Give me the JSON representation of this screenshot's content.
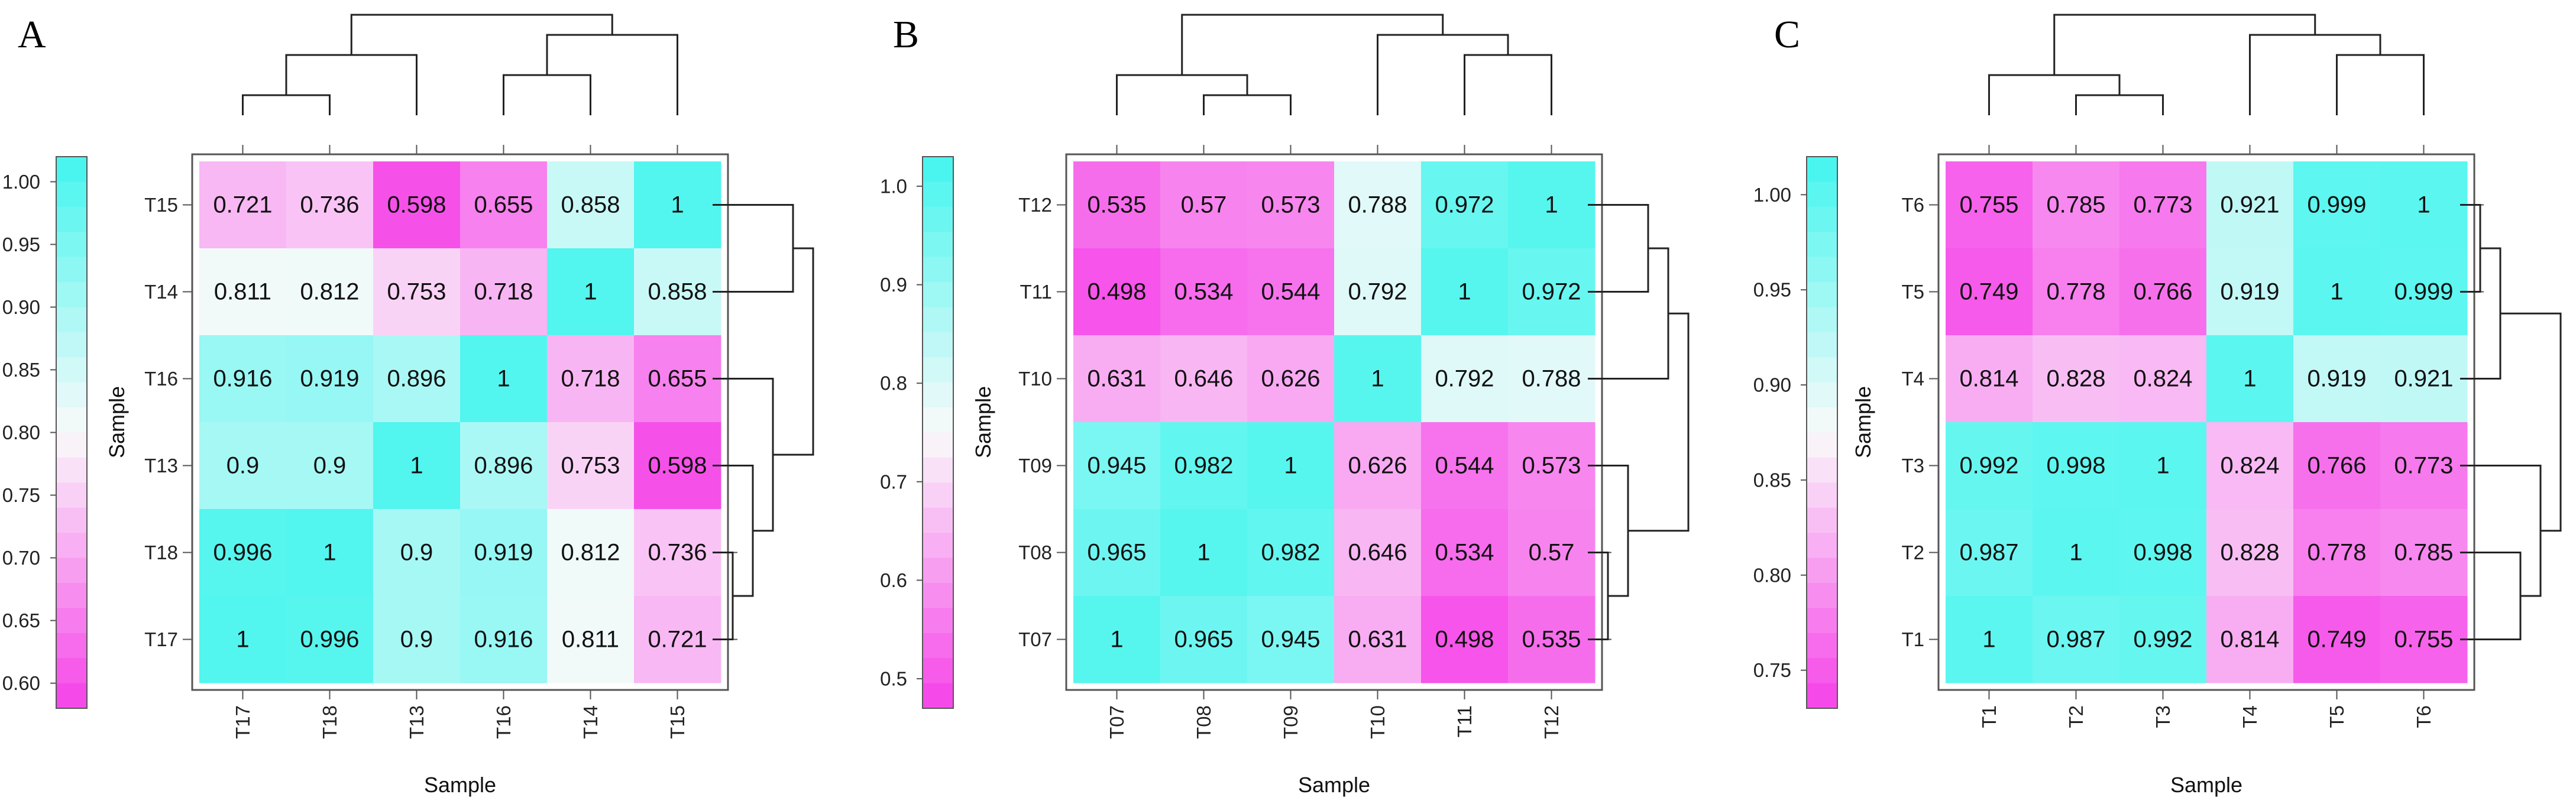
{
  "colors": {
    "low": "#f542e8",
    "mid": "#fafafa",
    "high": "#42f5ee",
    "line": "#222222",
    "frame": "#555555"
  },
  "chart_data": [
    {
      "type": "heatmap",
      "panel_label": "A",
      "xlabel": "Sample",
      "ylabel": "Sample",
      "x_labels": [
        "T17",
        "T18",
        "T13",
        "T16",
        "T14",
        "T15"
      ],
      "y_labels": [
        "T15",
        "T14",
        "T16",
        "T13",
        "T18",
        "T17"
      ],
      "values": [
        [
          "0.721",
          "0.736",
          "0.598",
          "0.655",
          "0.858",
          "1"
        ],
        [
          "0.811",
          "0.812",
          "0.753",
          "0.718",
          "1",
          "0.858"
        ],
        [
          "0.916",
          "0.919",
          "0.896",
          "1",
          "0.718",
          "0.655"
        ],
        [
          "0.9",
          "0.9",
          "1",
          "0.896",
          "0.753",
          "0.598"
        ],
        [
          "0.996",
          "1",
          "0.9",
          "0.919",
          "0.812",
          "0.736"
        ],
        [
          "1",
          "0.996",
          "0.9",
          "0.916",
          "0.811",
          "0.721"
        ]
      ],
      "colorbar": {
        "range": [
          0.58,
          1.02
        ],
        "ticks": [
          "0.60",
          "0.65",
          "0.70",
          "0.75",
          "0.80",
          "0.85",
          "0.90",
          "0.95",
          "1.00"
        ],
        "tick_values": [
          0.6,
          0.65,
          0.7,
          0.75,
          0.8,
          0.85,
          0.9,
          0.95,
          1.0
        ]
      },
      "col_tree": [
        [
          0,
          1
        ],
        [
          3,
          4
        ],
        [
          2,
          6
        ],
        [
          7,
          5
        ],
        [
          8,
          9
        ]
      ],
      "row_tree": [
        [
          4,
          5
        ],
        [
          3,
          6
        ],
        [
          2,
          7
        ],
        [
          0,
          1
        ],
        [
          9,
          8
        ]
      ]
    },
    {
      "type": "heatmap",
      "panel_label": "B",
      "xlabel": "Sample",
      "ylabel": "Sample",
      "x_labels": [
        "T07",
        "T08",
        "T09",
        "T10",
        "T11",
        "T12"
      ],
      "y_labels": [
        "T12",
        "T11",
        "T10",
        "T09",
        "T08",
        "T07"
      ],
      "values": [
        [
          "0.535",
          "0.57",
          "0.573",
          "0.788",
          "0.972",
          "1"
        ],
        [
          "0.498",
          "0.534",
          "0.544",
          "0.792",
          "1",
          "0.972"
        ],
        [
          "0.631",
          "0.646",
          "0.626",
          "1",
          "0.792",
          "0.788"
        ],
        [
          "0.945",
          "0.982",
          "1",
          "0.626",
          "0.544",
          "0.573"
        ],
        [
          "0.965",
          "1",
          "0.982",
          "0.646",
          "0.534",
          "0.57"
        ],
        [
          "1",
          "0.965",
          "0.945",
          "0.631",
          "0.498",
          "0.535"
        ]
      ],
      "colorbar": {
        "range": [
          0.47,
          1.03
        ],
        "ticks": [
          "0.5",
          "0.6",
          "0.7",
          "0.8",
          "0.9",
          "1.0"
        ],
        "tick_values": [
          0.5,
          0.6,
          0.7,
          0.8,
          0.9,
          1.0
        ]
      },
      "col_tree": [
        [
          1,
          2
        ],
        [
          0,
          6
        ],
        [
          4,
          5
        ],
        [
          3,
          8
        ],
        [
          7,
          9
        ]
      ],
      "row_tree": [
        [
          4,
          5
        ],
        [
          3,
          6
        ],
        [
          0,
          1
        ],
        [
          2,
          8
        ],
        [
          7,
          9
        ]
      ]
    },
    {
      "type": "heatmap",
      "panel_label": "C",
      "xlabel": "Sample",
      "ylabel": "Sample",
      "x_labels": [
        "T1",
        "T2",
        "T3",
        "T4",
        "T5",
        "T6"
      ],
      "y_labels": [
        "T6",
        "T5",
        "T4",
        "T3",
        "T2",
        "T1"
      ],
      "values": [
        [
          "0.755",
          "0.785",
          "0.773",
          "0.921",
          "0.999",
          "1"
        ],
        [
          "0.749",
          "0.778",
          "0.766",
          "0.919",
          "1",
          "0.999"
        ],
        [
          "0.814",
          "0.828",
          "0.824",
          "1",
          "0.919",
          "0.921"
        ],
        [
          "0.992",
          "0.998",
          "1",
          "0.824",
          "0.766",
          "0.773"
        ],
        [
          "0.987",
          "1",
          "0.998",
          "0.828",
          "0.778",
          "0.785"
        ],
        [
          "1",
          "0.987",
          "0.992",
          "0.814",
          "0.749",
          "0.755"
        ]
      ],
      "colorbar": {
        "range": [
          0.73,
          1.02
        ],
        "ticks": [
          "0.75",
          "0.80",
          "0.85",
          "0.90",
          "0.95",
          "1.00"
        ],
        "tick_values": [
          0.75,
          0.8,
          0.85,
          0.9,
          0.95,
          1.0
        ]
      },
      "col_tree": [
        [
          1,
          2
        ],
        [
          0,
          6
        ],
        [
          4,
          5
        ],
        [
          3,
          8
        ],
        [
          7,
          9
        ]
      ],
      "row_tree": [
        [
          0,
          1
        ],
        [
          2,
          6
        ],
        [
          4,
          5
        ],
        [
          3,
          8
        ],
        [
          7,
          9
        ]
      ]
    }
  ]
}
